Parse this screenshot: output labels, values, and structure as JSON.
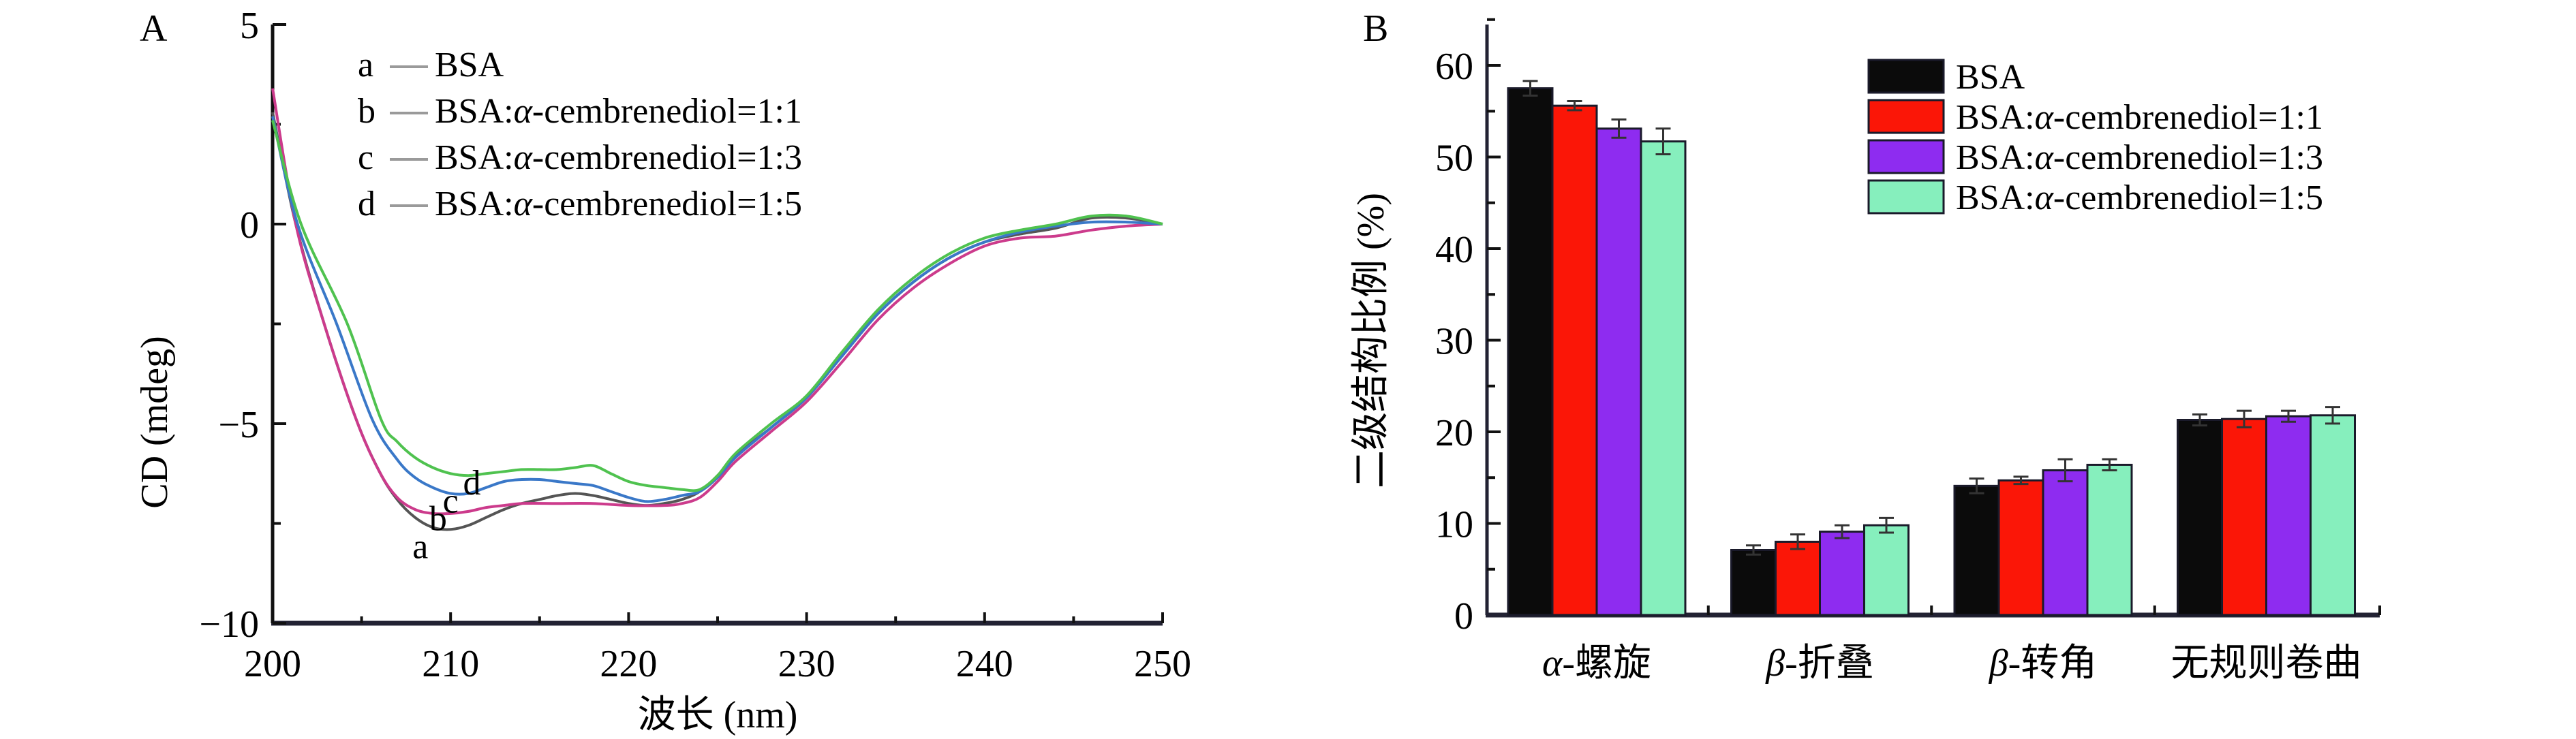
{
  "chart_data": [
    {
      "panel_label": "A",
      "type": "line",
      "title": "",
      "xlabel": "波长 (nm)",
      "ylabel": "CD (mdeg)",
      "xlim": [
        200,
        250
      ],
      "ylim": [
        -10,
        5
      ],
      "xticks": [
        200,
        210,
        220,
        230,
        240,
        250
      ],
      "yticks": [
        5,
        0,
        -5,
        -10
      ],
      "ytick_labels": [
        "5",
        "0",
        "−5",
        "−10"
      ],
      "legend_position": "top-left",
      "legend": [
        {
          "key": "a",
          "label_main": "BSA",
          "label_rest": ""
        },
        {
          "key": "b",
          "label_main": "BSA",
          "label_rest": "1:1"
        },
        {
          "key": "c",
          "label_main": "BSA",
          "label_rest": "1:3"
        },
        {
          "key": "d",
          "label_main": "BSA",
          "label_rest": "1:5"
        }
      ],
      "ligand_prefix": "α",
      "ligand_name": "-cembrenediol=",
      "series": [
        {
          "name": "a",
          "label": "BSA",
          "color": "#555555",
          "points": [
            [
              200,
              2.8
            ],
            [
              201.3,
              0.0
            ],
            [
              202.9,
              -2.5
            ],
            [
              204.7,
              -4.9
            ],
            [
              206,
              -6.2
            ],
            [
              207,
              -6.9
            ],
            [
              208,
              -7.35
            ],
            [
              209,
              -7.6
            ],
            [
              210,
              -7.65
            ],
            [
              211,
              -7.55
            ],
            [
              212,
              -7.35
            ],
            [
              213,
              -7.15
            ],
            [
              214,
              -7.0
            ],
            [
              215,
              -6.9
            ],
            [
              216,
              -6.8
            ],
            [
              217,
              -6.75
            ],
            [
              218,
              -6.8
            ],
            [
              219,
              -6.9
            ],
            [
              220,
              -7.0
            ],
            [
              221,
              -7.05
            ],
            [
              222,
              -7.0
            ],
            [
              223,
              -6.9
            ],
            [
              224,
              -6.7
            ],
            [
              225,
              -6.3
            ],
            [
              226,
              -5.8
            ],
            [
              228,
              -5.1
            ],
            [
              230,
              -4.35
            ],
            [
              232,
              -3.3
            ],
            [
              234,
              -2.25
            ],
            [
              236,
              -1.45
            ],
            [
              238,
              -0.85
            ],
            [
              240,
              -0.45
            ],
            [
              242,
              -0.25
            ],
            [
              244,
              -0.1
            ],
            [
              246,
              0.15
            ],
            [
              248,
              0.15
            ],
            [
              250,
              0.0
            ]
          ]
        },
        {
          "name": "b",
          "label": "BSA:α-cembrenediol=1:1",
          "color": "#cc3b8c",
          "points": [
            [
              200,
              3.4
            ],
            [
              201.3,
              0.0
            ],
            [
              202.9,
              -2.5
            ],
            [
              204.7,
              -4.9
            ],
            [
              206,
              -6.2
            ],
            [
              207,
              -6.85
            ],
            [
              208,
              -7.15
            ],
            [
              209,
              -7.25
            ],
            [
              210,
              -7.25
            ],
            [
              211,
              -7.2
            ],
            [
              212,
              -7.1
            ],
            [
              213,
              -7.05
            ],
            [
              214,
              -7.0
            ],
            [
              216,
              -7.0
            ],
            [
              218,
              -7.0
            ],
            [
              220,
              -7.05
            ],
            [
              222,
              -7.05
            ],
            [
              223,
              -7.0
            ],
            [
              224,
              -6.85
            ],
            [
              225,
              -6.45
            ],
            [
              226,
              -5.95
            ],
            [
              228,
              -5.2
            ],
            [
              230,
              -4.45
            ],
            [
              232,
              -3.45
            ],
            [
              234,
              -2.4
            ],
            [
              236,
              -1.6
            ],
            [
              238,
              -1.0
            ],
            [
              240,
              -0.55
            ],
            [
              242,
              -0.35
            ],
            [
              244,
              -0.3
            ],
            [
              246,
              -0.15
            ],
            [
              248,
              -0.05
            ],
            [
              250,
              0.0
            ]
          ]
        },
        {
          "name": "c",
          "label": "BSA:α-cembrenediol=1:3",
          "color": "#3a78c8",
          "points": [
            [
              200,
              2.7
            ],
            [
              201.4,
              0.0
            ],
            [
              203.6,
              -2.5
            ],
            [
              205.6,
              -4.9
            ],
            [
              207,
              -5.9
            ],
            [
              208,
              -6.35
            ],
            [
              209,
              -6.6
            ],
            [
              210,
              -6.75
            ],
            [
              211,
              -6.75
            ],
            [
              212,
              -6.6
            ],
            [
              213,
              -6.45
            ],
            [
              214,
              -6.4
            ],
            [
              215,
              -6.4
            ],
            [
              216,
              -6.45
            ],
            [
              217,
              -6.5
            ],
            [
              218,
              -6.55
            ],
            [
              219,
              -6.7
            ],
            [
              220,
              -6.85
            ],
            [
              221,
              -6.95
            ],
            [
              222,
              -6.9
            ],
            [
              223,
              -6.8
            ],
            [
              224,
              -6.7
            ],
            [
              225,
              -6.35
            ],
            [
              226,
              -5.85
            ],
            [
              228,
              -5.1
            ],
            [
              230,
              -4.35
            ],
            [
              232,
              -3.3
            ],
            [
              234,
              -2.25
            ],
            [
              236,
              -1.45
            ],
            [
              238,
              -0.85
            ],
            [
              240,
              -0.45
            ],
            [
              242,
              -0.2
            ],
            [
              244,
              -0.05
            ],
            [
              246,
              0.05
            ],
            [
              248,
              0.05
            ],
            [
              250,
              0.0
            ]
          ]
        },
        {
          "name": "d",
          "label": "BSA:α-cembrenediol=1:5",
          "color": "#4fc24f",
          "points": [
            [
              200,
              2.6
            ],
            [
              201.6,
              0.0
            ],
            [
              204.2,
              -2.5
            ],
            [
              206.1,
              -4.9
            ],
            [
              207,
              -5.45
            ],
            [
              208,
              -5.85
            ],
            [
              209,
              -6.1
            ],
            [
              210,
              -6.25
            ],
            [
              211,
              -6.3
            ],
            [
              212,
              -6.25
            ],
            [
              213,
              -6.2
            ],
            [
              214,
              -6.15
            ],
            [
              215,
              -6.15
            ],
            [
              216,
              -6.15
            ],
            [
              217,
              -6.1
            ],
            [
              218,
              -6.05
            ],
            [
              219,
              -6.25
            ],
            [
              220,
              -6.45
            ],
            [
              221,
              -6.55
            ],
            [
              222,
              -6.6
            ],
            [
              223,
              -6.65
            ],
            [
              224,
              -6.65
            ],
            [
              225,
              -6.3
            ],
            [
              226,
              -5.75
            ],
            [
              228,
              -5.0
            ],
            [
              230,
              -4.3
            ],
            [
              232,
              -3.2
            ],
            [
              234,
              -2.15
            ],
            [
              236,
              -1.35
            ],
            [
              238,
              -0.75
            ],
            [
              240,
              -0.35
            ],
            [
              242,
              -0.15
            ],
            [
              244,
              0.0
            ],
            [
              246,
              0.2
            ],
            [
              248,
              0.2
            ],
            [
              250,
              0.0
            ]
          ]
        }
      ],
      "annotations": [
        {
          "text": "a",
          "x": 208.3,
          "y": -8.1
        },
        {
          "text": "b",
          "x": 209.3,
          "y": -7.4
        },
        {
          "text": "c",
          "x": 210.0,
          "y": -6.95
        },
        {
          "text": "d",
          "x": 211.2,
          "y": -6.5
        }
      ]
    },
    {
      "panel_label": "B",
      "type": "bar",
      "title": "",
      "xlabel": "",
      "ylabel": "二级结构比例 (%)",
      "ylim": [
        0,
        65
      ],
      "yticks": [
        0,
        10,
        20,
        30,
        40,
        50,
        60
      ],
      "grid": false,
      "legend_position": "top-right",
      "categories": [
        "α-螺旋",
        "β-折叠",
        "β-转角",
        "无规则卷曲"
      ],
      "category_labels": [
        {
          "greek": "α",
          "rest": "-螺旋"
        },
        {
          "greek": "β",
          "rest": "-折叠"
        },
        {
          "greek": "β",
          "rest": "-转角"
        },
        {
          "greek": "",
          "rest": "无规则卷曲"
        }
      ],
      "series": [
        {
          "name": "BSA",
          "legend_main": "BSA",
          "legend_rest": "",
          "color": "#0b0b0b",
          "values": [
            57.5,
            7.1,
            14.1,
            21.3
          ],
          "errors": [
            0.8,
            0.5,
            0.8,
            0.6
          ]
        },
        {
          "name": "BSA:α-cembrenediol=1:1",
          "legend_main": "BSA",
          "legend_rest": "1:1",
          "color": "#fb1607",
          "values": [
            55.6,
            8.0,
            14.7,
            21.4
          ],
          "errors": [
            0.5,
            0.8,
            0.4,
            0.9
          ]
        },
        {
          "name": "BSA:α-cembrenediol=1:3",
          "legend_main": "BSA",
          "legend_rest": "1:3",
          "color": "#8e2cf0",
          "values": [
            53.1,
            9.1,
            15.8,
            21.7
          ],
          "errors": [
            1.0,
            0.7,
            1.2,
            0.6
          ]
        },
        {
          "name": "BSA:α-cembrenediol=1:5",
          "legend_main": "BSA",
          "legend_rest": "1:5",
          "color": "#86efbd",
          "values": [
            51.7,
            9.8,
            16.4,
            21.8
          ],
          "errors": [
            1.4,
            0.8,
            0.6,
            0.9
          ]
        }
      ],
      "ligand_prefix": "α",
      "ligand_name": "-cembrenediol="
    }
  ]
}
